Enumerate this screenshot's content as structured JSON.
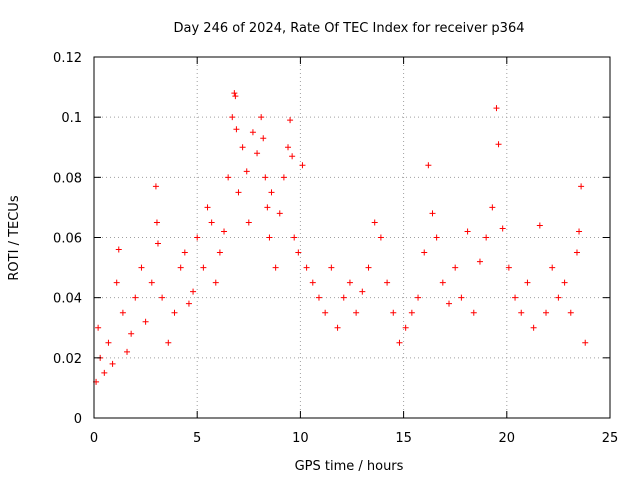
{
  "chart_data": {
    "type": "scatter",
    "title": "Day 246 of 2024, Rate Of TEC Index for receiver p364",
    "xlabel": "GPS time / hours",
    "ylabel": "ROTI / TECUs",
    "xlim": [
      0,
      25
    ],
    "ylim": [
      0,
      0.12
    ],
    "x_ticks": [
      0,
      5,
      10,
      15,
      20,
      25
    ],
    "y_ticks": [
      0,
      0.02,
      0.04,
      0.06,
      0.08,
      0.1,
      0.12
    ],
    "x_tick_labels": [
      "0",
      "5",
      "10",
      "15",
      "20",
      "25"
    ],
    "y_tick_labels": [
      "0",
      "0.02",
      "0.04",
      "0.06",
      "0.08",
      "0.1",
      "0.12"
    ],
    "grid": true,
    "marker": "+",
    "color": "#ff0000",
    "series": [
      {
        "name": "ROTI",
        "x": [
          0.1,
          0.2,
          0.3,
          0.5,
          0.7,
          0.9,
          1.1,
          1.2,
          1.4,
          1.6,
          1.8,
          2.0,
          2.3,
          2.5,
          2.8,
          3.0,
          3.05,
          3.1,
          3.3,
          3.6,
          3.9,
          4.2,
          4.4,
          4.6,
          4.8,
          5.0,
          5.3,
          5.5,
          5.7,
          5.9,
          6.1,
          6.3,
          6.5,
          6.7,
          6.8,
          6.85,
          6.9,
          7.0,
          7.2,
          7.4,
          7.5,
          7.7,
          7.9,
          8.1,
          8.2,
          8.3,
          8.4,
          8.5,
          8.6,
          8.8,
          9.0,
          9.2,
          9.4,
          9.5,
          9.6,
          9.7,
          9.9,
          10.1,
          10.3,
          10.6,
          10.9,
          11.2,
          11.5,
          11.8,
          12.1,
          12.4,
          12.7,
          13.0,
          13.3,
          13.6,
          13.9,
          14.2,
          14.5,
          14.8,
          15.1,
          15.4,
          15.7,
          16.0,
          16.2,
          16.4,
          16.6,
          16.9,
          17.2,
          17.5,
          17.8,
          18.1,
          18.4,
          18.7,
          19.0,
          19.3,
          19.5,
          19.6,
          19.8,
          20.1,
          20.4,
          20.7,
          21.0,
          21.3,
          21.6,
          21.9,
          22.2,
          22.5,
          22.8,
          23.1,
          23.4,
          23.5,
          23.6,
          23.8
        ],
        "y": [
          0.012,
          0.03,
          0.02,
          0.015,
          0.025,
          0.018,
          0.045,
          0.056,
          0.035,
          0.022,
          0.028,
          0.04,
          0.05,
          0.032,
          0.045,
          0.077,
          0.065,
          0.058,
          0.04,
          0.025,
          0.035,
          0.05,
          0.055,
          0.038,
          0.042,
          0.06,
          0.05,
          0.07,
          0.065,
          0.045,
          0.055,
          0.062,
          0.08,
          0.1,
          0.108,
          0.107,
          0.096,
          0.075,
          0.09,
          0.082,
          0.065,
          0.095,
          0.088,
          0.1,
          0.093,
          0.08,
          0.07,
          0.06,
          0.075,
          0.05,
          0.068,
          0.08,
          0.09,
          0.099,
          0.087,
          0.06,
          0.055,
          0.084,
          0.05,
          0.045,
          0.04,
          0.035,
          0.05,
          0.03,
          0.04,
          0.045,
          0.035,
          0.042,
          0.05,
          0.065,
          0.06,
          0.045,
          0.035,
          0.025,
          0.03,
          0.035,
          0.04,
          0.055,
          0.084,
          0.068,
          0.06,
          0.045,
          0.038,
          0.05,
          0.04,
          0.062,
          0.035,
          0.052,
          0.06,
          0.07,
          0.103,
          0.091,
          0.063,
          0.05,
          0.04,
          0.035,
          0.045,
          0.03,
          0.064,
          0.035,
          0.05,
          0.04,
          0.045,
          0.035,
          0.055,
          0.062,
          0.077,
          0.025
        ]
      }
    ]
  }
}
